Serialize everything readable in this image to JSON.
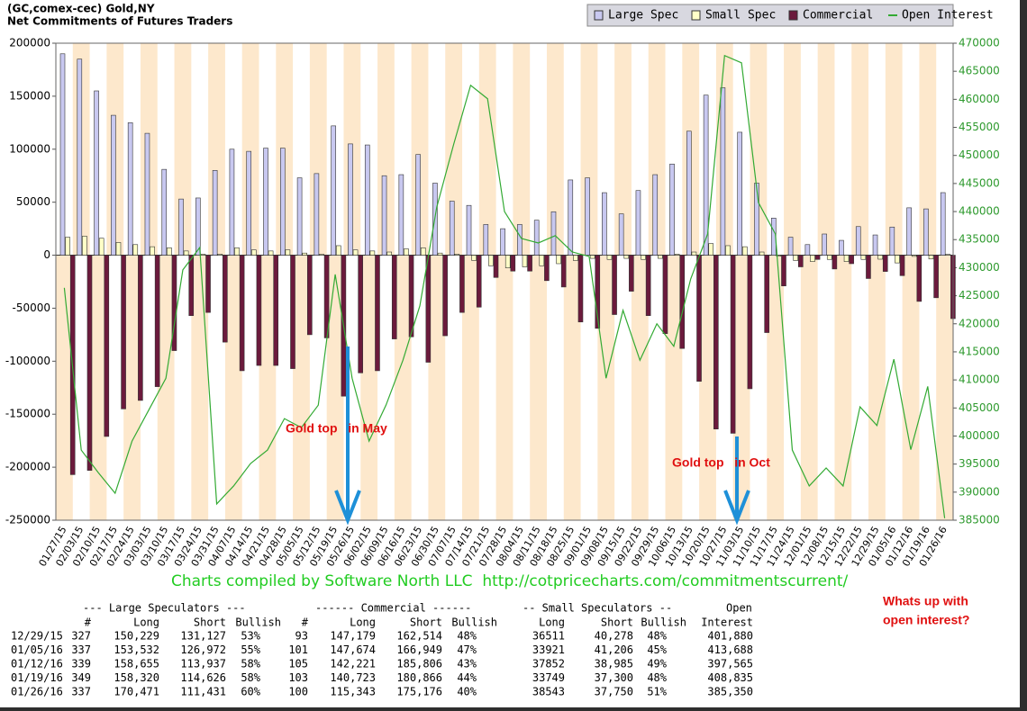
{
  "chart_data": {
    "type": "bar",
    "title": "(GC,comex-cec) Gold,NY",
    "subtitle": "Net Commitments of Futures Traders",
    "categories": [
      "01/27/15",
      "02/03/15",
      "02/10/15",
      "02/17/15",
      "02/24/15",
      "03/03/15",
      "03/10/15",
      "03/17/15",
      "03/24/15",
      "03/31/15",
      "04/07/15",
      "04/14/15",
      "04/21/15",
      "04/28/15",
      "05/05/15",
      "05/12/15",
      "05/19/15",
      "05/26/15",
      "06/02/15",
      "06/09/15",
      "06/16/15",
      "06/23/15",
      "06/30/15",
      "07/07/15",
      "07/14/15",
      "07/21/15",
      "07/28/15",
      "08/04/15",
      "08/11/15",
      "08/18/15",
      "08/25/15",
      "09/01/15",
      "09/08/15",
      "09/15/15",
      "09/22/15",
      "09/29/15",
      "10/06/15",
      "10/13/15",
      "10/20/15",
      "10/27/15",
      "11/03/15",
      "11/10/15",
      "11/17/15",
      "11/24/15",
      "12/01/15",
      "12/08/15",
      "12/15/15",
      "12/22/15",
      "12/29/15",
      "01/05/16",
      "01/12/16",
      "01/19/16",
      "01/26/16"
    ],
    "series": [
      {
        "name": "Large Spec",
        "color": "#c8c8f0",
        "values": [
          190000,
          185000,
          155000,
          132000,
          125000,
          115000,
          81000,
          53000,
          54000,
          80000,
          100000,
          98000,
          101000,
          101000,
          73000,
          77000,
          122000,
          105000,
          104000,
          75000,
          76000,
          95000,
          68000,
          51000,
          47000,
          29000,
          25000,
          29000,
          33000,
          41000,
          71000,
          73000,
          59000,
          39000,
          61000,
          76000,
          86000,
          117000,
          151000,
          158000,
          116000,
          68000,
          35000,
          17000,
          10000,
          20000,
          14000,
          27000,
          19102,
          26560,
          44718,
          43694,
          59040
        ]
      },
      {
        "name": "Small Spec",
        "color": "#ffffc8",
        "values": [
          17000,
          18000,
          16000,
          12000,
          10000,
          8000,
          7000,
          4000,
          1000,
          1000,
          7000,
          5000,
          4000,
          5000,
          2000,
          1000,
          9000,
          5000,
          4000,
          3000,
          6000,
          7000,
          2000,
          1000,
          -5000,
          -10000,
          -12000,
          -11000,
          -10000,
          -8000,
          -5000,
          -3000,
          -4000,
          -3000,
          -4000,
          -3000,
          1000,
          3000,
          11000,
          9000,
          8000,
          3000,
          -1000,
          -5000,
          -6000,
          -4000,
          -6000,
          -4000,
          -3767,
          -7285,
          -1133,
          -3551,
          793
        ]
      },
      {
        "name": "Commercial",
        "color": "#6b1a3c",
        "values": [
          -207000,
          -203000,
          -171000,
          -145000,
          -137000,
          -124000,
          -90000,
          -57000,
          -54000,
          -82000,
          -109000,
          -104000,
          -104000,
          -107000,
          -75000,
          -78000,
          -133000,
          -111000,
          -109000,
          -79000,
          -77000,
          -101000,
          -76000,
          -54000,
          -49000,
          -21000,
          -15000,
          -15000,
          -24000,
          -30000,
          -63000,
          -69000,
          -56000,
          -34000,
          -57000,
          -74000,
          -88000,
          -119000,
          -164000,
          -168000,
          -126000,
          -73000,
          -29000,
          -11000,
          -4000,
          -13000,
          -8000,
          -22000,
          -15335,
          -19275,
          -43585,
          -40143,
          -59833
        ]
      },
      {
        "name": "Open Interest",
        "color": "#33aa33",
        "type": "line",
        "axis": "y2",
        "values": [
          426400,
          397500,
          393500,
          389800,
          399100,
          404700,
          410300,
          429600,
          433600,
          387900,
          391100,
          395100,
          397500,
          403100,
          401500,
          405500,
          428800,
          410300,
          399100,
          405500,
          413500,
          423200,
          440800,
          452000,
          462500,
          460100,
          440000,
          435200,
          434400,
          435700,
          432800,
          432000,
          410300,
          422400,
          413500,
          420000,
          416000,
          428000,
          436000,
          467800,
          466500,
          441600,
          436000,
          397500,
          391100,
          394300,
          391100,
          405200,
          401880,
          413688,
          397565,
          408835,
          385350
        ]
      }
    ],
    "ylim": [
      -250000,
      200000
    ],
    "yticks": [
      -250000,
      -200000,
      -150000,
      -100000,
      -50000,
      0,
      50000,
      100000,
      150000,
      200000
    ],
    "y2lim": [
      385000,
      470000
    ],
    "y2ticks": [
      385000,
      390000,
      395000,
      400000,
      405000,
      410000,
      415000,
      420000,
      425000,
      430000,
      435000,
      440000,
      445000,
      450000,
      455000,
      460000,
      465000,
      470000
    ],
    "annotations": [
      "Gold top   in May",
      "Gold top   in Oct",
      "Whats up with",
      "open interest?"
    ],
    "credit": "Charts compiled by Software North LLC  http://cotpricecharts.com/commitmentscurrent/"
  },
  "table": {
    "group_headers": [
      "--- Large Speculators ---",
      "------ Commercial ------",
      "-- Small Speculators --",
      "Open"
    ],
    "columns": [
      "#",
      "Long",
      "Short",
      "Bullish",
      "#",
      "Long",
      "Short",
      "Bullish",
      "Long",
      "Short",
      "Bullish",
      "Interest"
    ],
    "rows": [
      [
        "12/29/15",
        "327",
        "150,229",
        "131,127",
        "53%",
        "93",
        "147,179",
        "162,514",
        "48%",
        "36511",
        "40,278",
        "48%",
        "401,880"
      ],
      [
        "01/05/16",
        "337",
        "153,532",
        "126,972",
        "55%",
        "101",
        "147,674",
        "166,949",
        "47%",
        "33921",
        "41,206",
        "45%",
        "413,688"
      ],
      [
        "01/12/16",
        "339",
        "158,655",
        "113,937",
        "58%",
        "105",
        "142,221",
        "185,806",
        "43%",
        "37852",
        "38,985",
        "49%",
        "397,565"
      ],
      [
        "01/19/16",
        "349",
        "158,320",
        "114,626",
        "58%",
        "103",
        "140,723",
        "180,866",
        "44%",
        "33749",
        "37,300",
        "48%",
        "408,835"
      ],
      [
        "01/26/16",
        "337",
        "170,471",
        "111,431",
        "60%",
        "100",
        "115,343",
        "175,176",
        "40%",
        "38543",
        "37,750",
        "51%",
        "385,350"
      ]
    ]
  }
}
